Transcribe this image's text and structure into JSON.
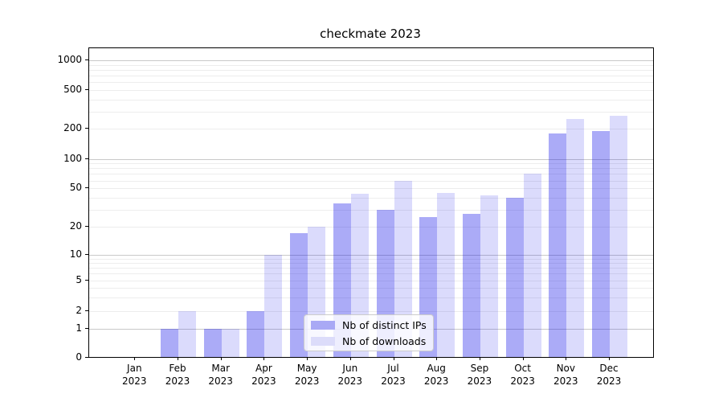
{
  "chart_data": {
    "type": "bar",
    "title": "checkmate 2023",
    "year_label": "2023",
    "months": [
      "Jan",
      "Feb",
      "Mar",
      "Apr",
      "May",
      "Jun",
      "Jul",
      "Aug",
      "Sep",
      "Oct",
      "Nov",
      "Dec"
    ],
    "series": [
      {
        "name": "Nb of distinct IPs",
        "bar_color": "rgba(13,13,232,0.35)",
        "swatch_color": "#a9a9f5",
        "values": [
          0,
          1,
          1,
          2,
          17,
          35,
          30,
          25,
          27,
          40,
          180,
          190
        ]
      },
      {
        "name": "Nb of downloads",
        "bar_color": "rgba(13,13,232,0.15)",
        "swatch_color": "#dcdcfa",
        "values": [
          0,
          2,
          1,
          10,
          20,
          44,
          60,
          45,
          42,
          70,
          250,
          270
        ]
      }
    ],
    "yticks": [
      0,
      1,
      2,
      5,
      10,
      20,
      50,
      100,
      200,
      500,
      1000
    ],
    "ylim": [
      0,
      1000
    ],
    "yscale": "symlog",
    "grid": true,
    "major_grid_at": [
      1,
      10,
      100,
      1000
    ],
    "legend_position": "lower center",
    "xlabel": "",
    "ylabel": ""
  }
}
